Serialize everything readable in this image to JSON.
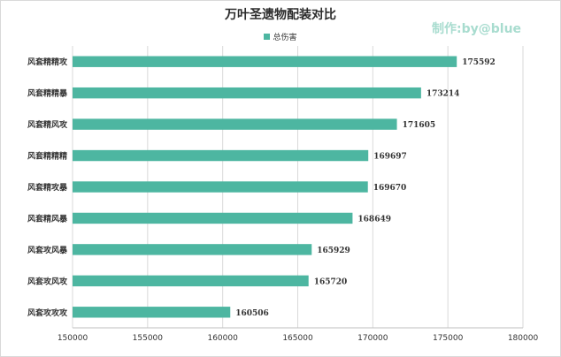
{
  "title": "万叶圣遗物配装对比",
  "watermark": "制作:by@blue",
  "colors": {
    "bar": "#4db6a1",
    "grid": "#d9d9d9",
    "text": "#333333"
  },
  "chart_data": {
    "type": "bar",
    "orientation": "horizontal",
    "title": "万叶圣遗物配装对比",
    "xlabel": "",
    "ylabel": "",
    "legend": "top",
    "grid": true,
    "categories": [
      "风套精精攻",
      "风套精精暴",
      "风套精风攻",
      "风套精精精",
      "风套精攻暴",
      "风套精风暴",
      "风套攻风暴",
      "风套攻风攻",
      "风套攻攻攻"
    ],
    "series": [
      {
        "name": "总伤害",
        "values": [
          175592,
          173214,
          171605,
          169697,
          169670,
          168649,
          165929,
          165720,
          160506
        ]
      }
    ],
    "xlim": [
      150000,
      180000
    ],
    "xticks": [
      150000,
      155000,
      160000,
      165000,
      170000,
      175000,
      180000
    ]
  }
}
